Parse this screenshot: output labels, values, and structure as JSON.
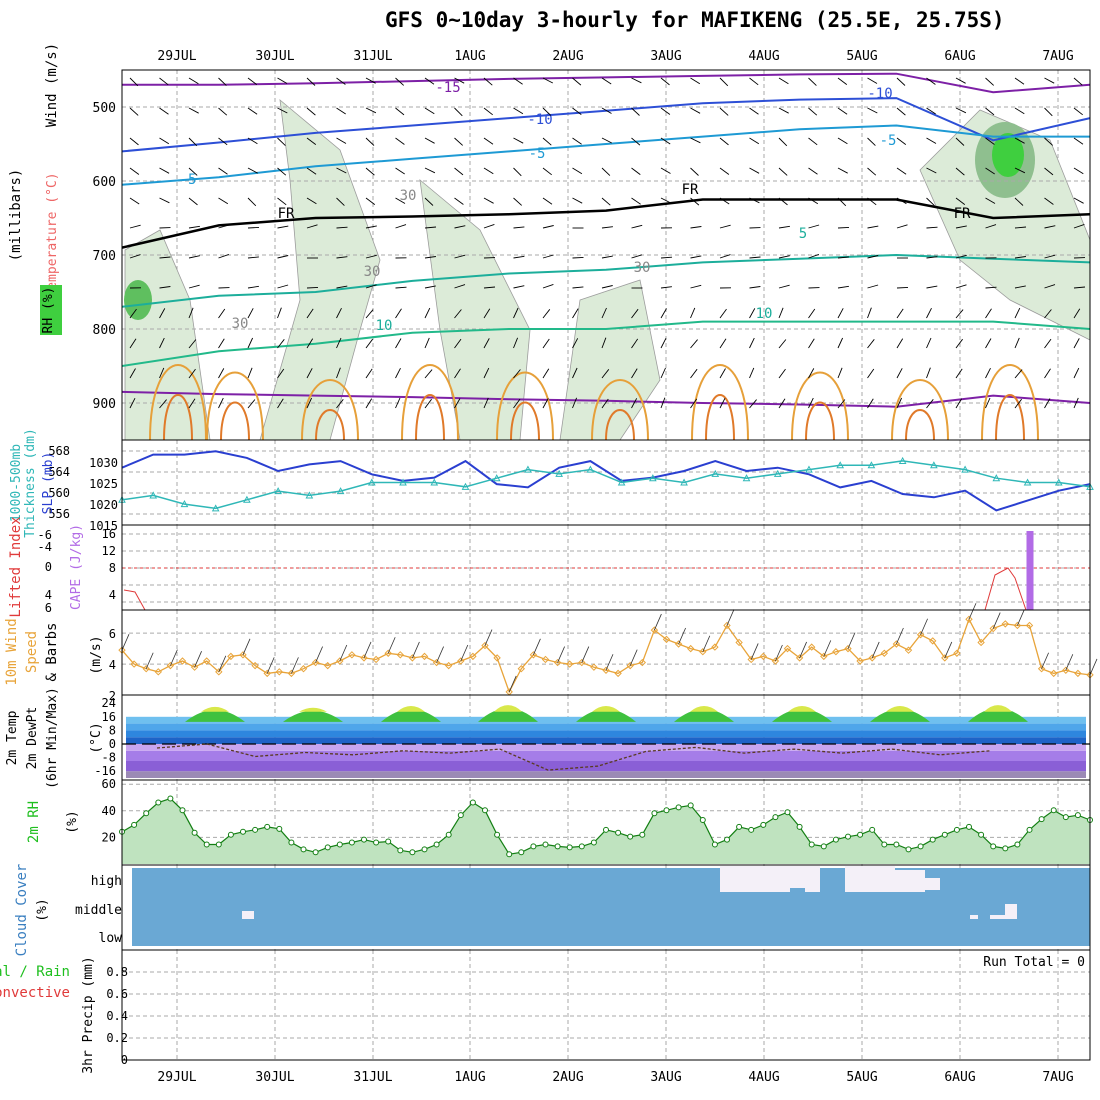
{
  "title": "GFS 0~10day 3-hourly for MAFIKENG (25.5E, 25.75S)",
  "colors": {
    "grid": "#aaaaaa",
    "slp": "#2a3fd0",
    "thick": "#2fb7b7",
    "cape": "#b26be6",
    "li": "#e03a3a",
    "wind": "#e8a43a",
    "rh": "#1fbf1f",
    "cloud": "#6aa8d4",
    "temp_purple": "#7d20a6",
    "temp_blue": "#2d4fd6",
    "temp_cyan": "#1e9ad4",
    "temp_teal": "#1cae9b",
    "temp_orange": "#e6a03a"
  },
  "chart_data": [
    {
      "type": "line",
      "panel": "pressure-time cross section",
      "x_tick_labels": [
        "29JUL",
        "30JUL",
        "31JUL",
        "1AUG",
        "2AUG",
        "3AUG",
        "4AUG",
        "5AUG",
        "6AUG",
        "7AUG"
      ],
      "ylabel": "(millibars)",
      "side_labels": [
        "Wind (m/s)",
        "Temperature (°C)",
        "RH (%)"
      ],
      "yticks": [
        500,
        600,
        700,
        800,
        900
      ],
      "ylim": [
        450,
        950
      ],
      "contour_labels": [
        "-15",
        "-10",
        "-10",
        "-5",
        "-5",
        "-5",
        "FR",
        "FR",
        "FR",
        "5",
        "10",
        "10",
        "30",
        "30",
        "30",
        "30"
      ],
      "isotherms": [
        {
          "name": "-15",
          "color": "purple",
          "p": [
            470,
            470,
            468,
            465,
            462,
            460,
            458,
            456,
            455,
            480,
            470
          ]
        },
        {
          "name": "-10",
          "color": "blue",
          "p": [
            560,
            548,
            535,
            525,
            515,
            505,
            495,
            490,
            488,
            545,
            515
          ]
        },
        {
          "name": "-5",
          "color": "cyan",
          "p": [
            605,
            595,
            580,
            570,
            560,
            550,
            540,
            530,
            525,
            540,
            540
          ]
        },
        {
          "name": "FR",
          "color": "black",
          "p": [
            690,
            660,
            650,
            648,
            645,
            640,
            625,
            625,
            625,
            650,
            645
          ]
        },
        {
          "name": "5",
          "color": "teal",
          "p": [
            770,
            755,
            750,
            735,
            725,
            720,
            710,
            705,
            700,
            705,
            710
          ]
        },
        {
          "name": "10",
          "color": "teal2",
          "p": [
            850,
            830,
            820,
            805,
            800,
            800,
            790,
            790,
            790,
            790,
            800
          ]
        }
      ]
    },
    {
      "type": "line",
      "panel": "SLP and thickness",
      "ylabel_left": "1000-500mb Thickness (dm)",
      "ylabel_right": "SLP (mb)",
      "left_ticks": [
        "568",
        "564",
        "560",
        "556"
      ],
      "right_ticks": [
        "1030",
        "1025",
        "1020",
        "1015"
      ],
      "series": [
        {
          "name": "SLP (mb)",
          "values": [
            1028,
            1032,
            1032,
            1033,
            1031,
            1027,
            1029,
            1030,
            1026,
            1024,
            1025,
            1030,
            1023,
            1022,
            1028,
            1030,
            1024,
            1025,
            1027,
            1030,
            1027,
            1028,
            1026,
            1022,
            1024,
            1020,
            1019,
            1021,
            1015,
            1018,
            1021,
            1023
          ]
        },
        {
          "name": "1000-500mb Thickness (dm)",
          "values": [
            558,
            559,
            557,
            556,
            558,
            560,
            559,
            560,
            562,
            562,
            562,
            561,
            563,
            565,
            564,
            565,
            562,
            563,
            562,
            564,
            563,
            564,
            565,
            566,
            566,
            567,
            566,
            565,
            563,
            562,
            562,
            561
          ]
        }
      ]
    },
    {
      "type": "bar",
      "panel": "CAPE and Lifted Index",
      "ylabel_left": "Lifted Index",
      "ylabel_right": "CAPE (J/kg)",
      "li_ticks": [
        "-6",
        "-4",
        "0",
        "4",
        "6"
      ],
      "cape_ticks": [
        "16",
        "12",
        "8",
        "4"
      ],
      "cape_value": 16,
      "cape_time_index": 75
    },
    {
      "type": "line",
      "panel": "10m wind",
      "ylabel": "10m Wind Speed (m/s) & Barbs",
      "yticks": [
        "6",
        "4",
        "2"
      ],
      "values": [
        4.9,
        4.0,
        3.7,
        3.5,
        3.9,
        4.2,
        3.8,
        4.2,
        3.5,
        4.5,
        4.6,
        3.9,
        3.4,
        3.5,
        3.4,
        3.7,
        4.1,
        3.9,
        4.2,
        4.6,
        4.4,
        4.3,
        4.7,
        4.6,
        4.4,
        4.5,
        4.1,
        3.9,
        4.2,
        4.5,
        5.2,
        4.4,
        2.2,
        3.7,
        4.6,
        4.3,
        4.1,
        4.0,
        4.1,
        3.8,
        3.6,
        3.4,
        3.9,
        4.1,
        6.2,
        5.6,
        5.3,
        5.0,
        4.8,
        5.1,
        6.5,
        5.4,
        4.3,
        4.5,
        4.2,
        5.0,
        4.4,
        5.1,
        4.5,
        4.8,
        5.0,
        4.2,
        4.4,
        4.7,
        5.3,
        4.9,
        5.9,
        5.5,
        4.4,
        4.7,
        6.9,
        5.4,
        6.3,
        6.6,
        6.5,
        6.5,
        3.7,
        3.4,
        3.6,
        3.4,
        3.3
      ],
      "ylim": [
        2,
        7.5
      ]
    },
    {
      "type": "area",
      "panel": "2m temperature",
      "ylabel": "2m Temp / 2m DewPt / (6hr Min/Max) (°C)",
      "yticks": [
        "24",
        "16",
        "8",
        "0",
        "-8",
        "-16"
      ],
      "temp_max": [
        20,
        19,
        21,
        22,
        21,
        21,
        21,
        21,
        22
      ],
      "temp_min": [
        13,
        11,
        11,
        12,
        12,
        11,
        11,
        11,
        11
      ],
      "dewpt": [
        0,
        -5,
        -4,
        -3,
        -13,
        -2,
        -3,
        -3,
        -4
      ]
    },
    {
      "type": "area",
      "panel": "2m RH",
      "ylabel": "2m RH (%)",
      "yticks": [
        "60",
        "40",
        "20"
      ],
      "values": [
        33,
        40,
        52,
        63,
        67,
        55,
        32,
        20,
        20,
        30,
        33,
        35,
        38,
        36,
        22,
        15,
        12,
        17,
        20,
        22,
        25,
        22,
        23,
        14,
        12,
        15,
        20,
        30,
        50,
        63,
        55,
        30,
        10,
        12,
        18,
        20,
        18,
        17,
        18,
        22,
        35,
        32,
        28,
        30,
        52,
        55,
        58,
        60,
        45,
        20,
        25,
        38,
        35,
        40,
        48,
        53,
        38,
        20,
        18,
        25,
        28,
        30,
        35,
        20,
        20,
        15,
        18,
        25,
        30,
        35,
        38,
        30,
        18,
        16,
        20,
        35,
        46,
        55,
        48,
        50,
        45
      ]
    },
    {
      "type": "bar",
      "panel": "cloud cover",
      "ylabel": "Cloud Cover (%)",
      "levels": [
        "high",
        "middle",
        "low"
      ]
    },
    {
      "type": "bar",
      "panel": "precipitation",
      "ylabel": "3hr Precip (mm)",
      "side_label_1": "Total / Rain",
      "side_label_2": "Convective",
      "yticks": [
        "0.8",
        "0.6",
        "0.4",
        "0.2",
        "0"
      ],
      "ylim": [
        0,
        1
      ],
      "run_total": "Run Total = 0"
    }
  ]
}
